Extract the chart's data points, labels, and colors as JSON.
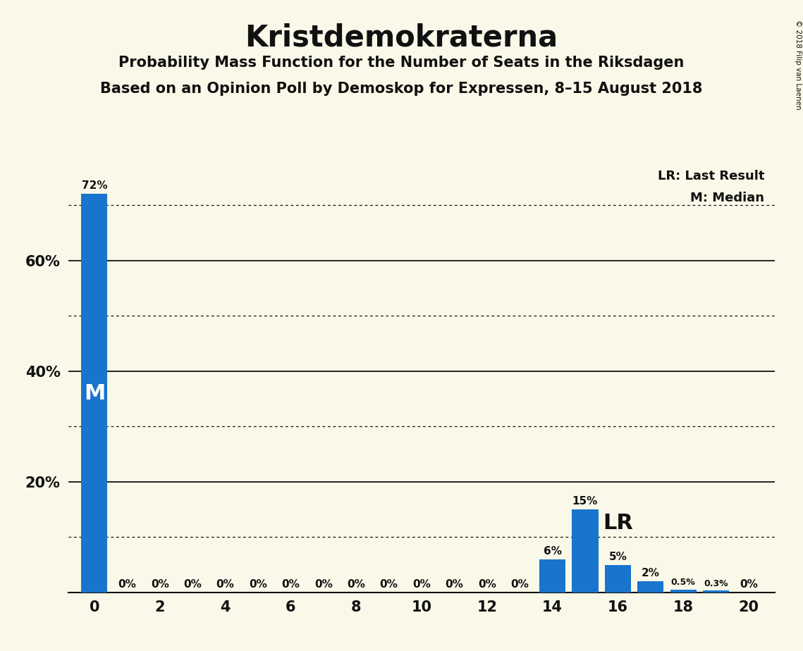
{
  "title": "Kristdemokraterna",
  "subtitle1": "Probability Mass Function for the Number of Seats in the Riksdagen",
  "subtitle2": "Based on an Opinion Poll by Demoskop for Expressen, 8–15 August 2018",
  "copyright": "© 2018 Filip van Laenen",
  "background_color": "#FAF8E8",
  "bar_color": "#1874CD",
  "categories": [
    0,
    1,
    2,
    3,
    4,
    5,
    6,
    7,
    8,
    9,
    10,
    11,
    12,
    13,
    14,
    15,
    16,
    17,
    18,
    19,
    20
  ],
  "values": [
    72,
    0,
    0,
    0,
    0,
    0,
    0,
    0,
    0,
    0,
    0,
    0,
    0,
    0,
    6,
    15,
    5,
    2,
    0.5,
    0.3,
    0
  ],
  "labels": [
    "72%",
    "0%",
    "0%",
    "0%",
    "0%",
    "0%",
    "0%",
    "0%",
    "0%",
    "0%",
    "0%",
    "0%",
    "0%",
    "0%",
    "6%",
    "15%",
    "5%",
    "2%",
    "0.5%",
    "0.3%",
    "0%"
  ],
  "median_seat": 0,
  "last_result_seat": 15,
  "ylim": [
    0,
    80
  ],
  "solid_yticks": [
    20,
    40,
    60
  ],
  "dotted_yticks": [
    10,
    30,
    50,
    70
  ],
  "xtick_positions": [
    0,
    2,
    4,
    6,
    8,
    10,
    12,
    14,
    16,
    18,
    20
  ],
  "lr_label": "LR",
  "m_label": "M",
  "lr_legend": "LR: Last Result",
  "m_legend": "M: Median",
  "title_fontsize": 30,
  "subtitle_fontsize": 15,
  "tick_fontsize": 15,
  "label_fontsize": 11
}
